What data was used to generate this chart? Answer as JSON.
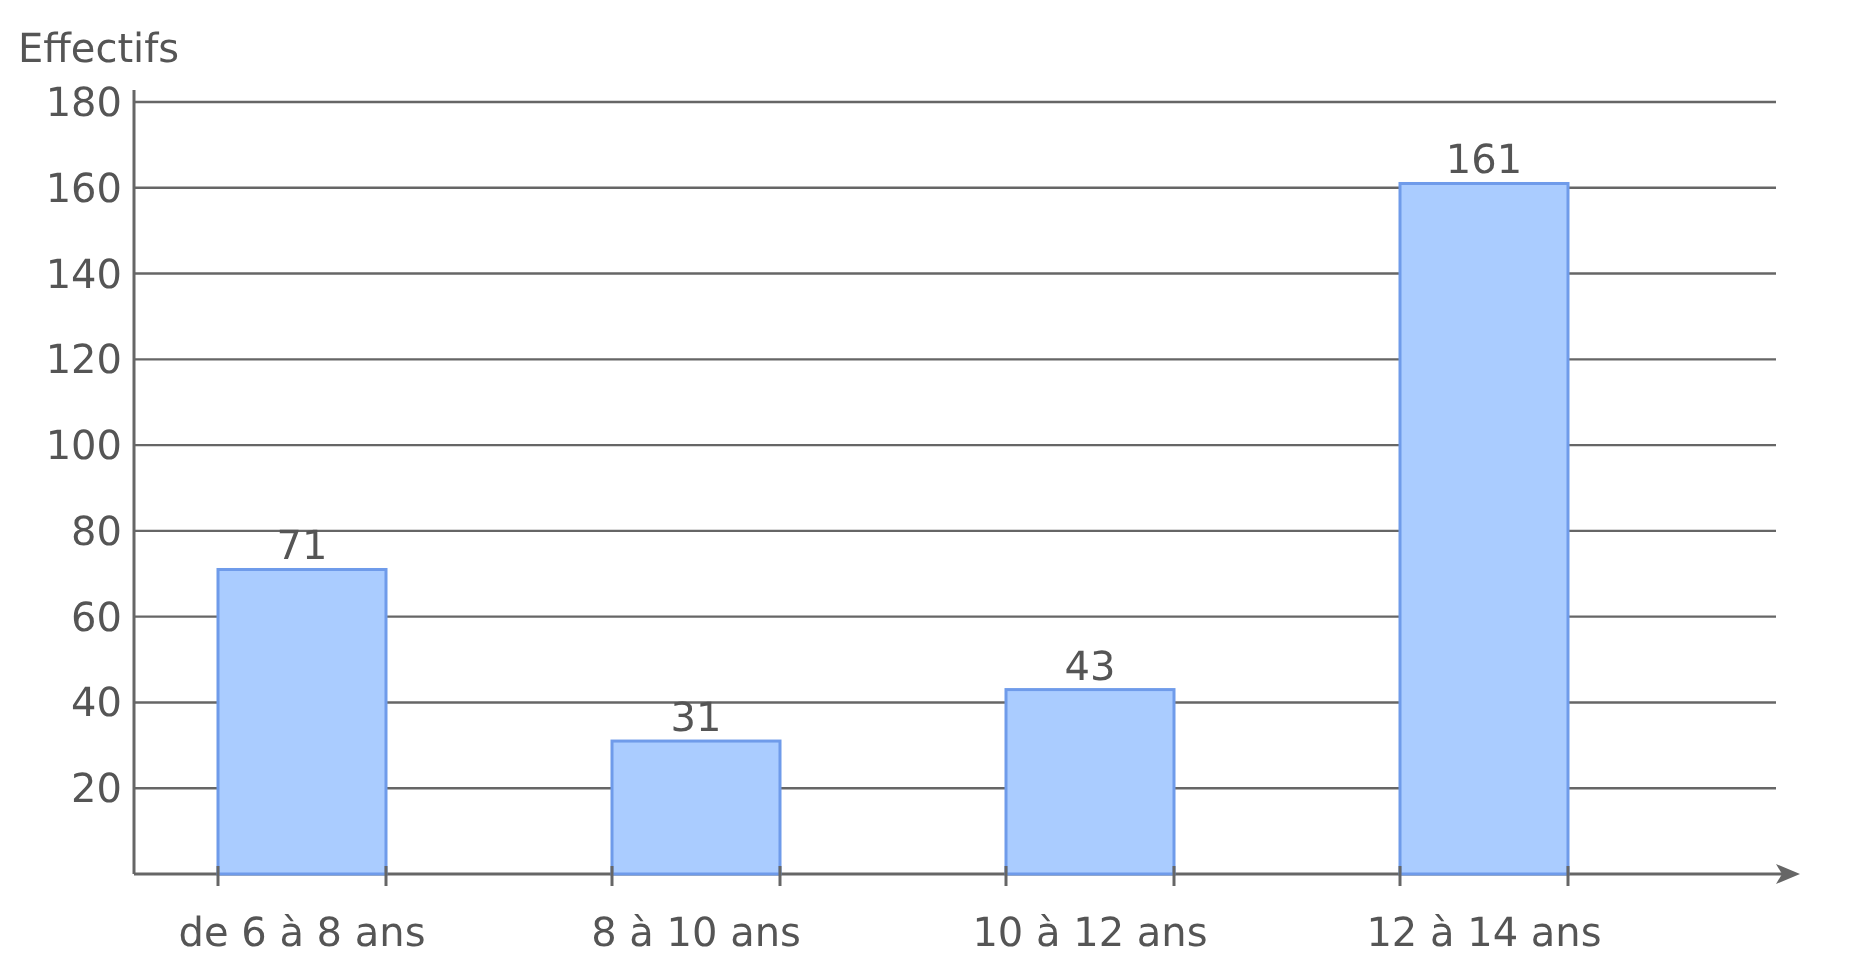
{
  "chart_data": {
    "type": "bar",
    "ylabel": "Effectifs",
    "categories": [
      "de 6 à 8 ans",
      "8 à 10 ans",
      "10 à 12 ans",
      "12 à 14 ans"
    ],
    "values": [
      71,
      31,
      43,
      161
    ],
    "color": "#aaccff",
    "ylim": [
      0,
      180
    ],
    "yticks": [
      20,
      40,
      60,
      80,
      100,
      120,
      140,
      160,
      180
    ],
    "grid": "y",
    "data_labels": true
  }
}
